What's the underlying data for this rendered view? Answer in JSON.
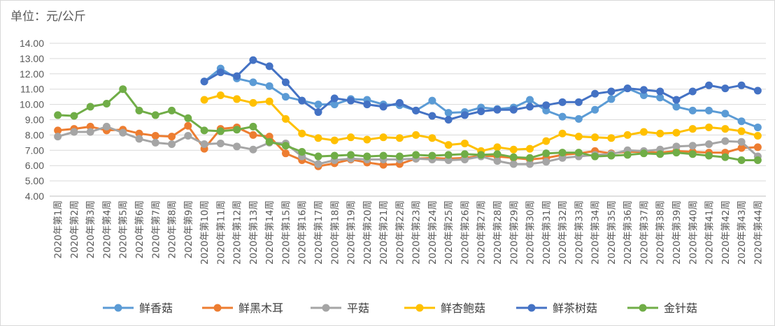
{
  "chart_data": {
    "type": "line",
    "unit_label": "单位：元/公斤",
    "ylim": [
      4.0,
      14.0
    ],
    "y_ticks": [
      "4.00",
      "5.00",
      "6.00",
      "7.00",
      "8.00",
      "9.00",
      "10.00",
      "11.00",
      "12.00",
      "13.00",
      "14.00"
    ],
    "grid": true,
    "legend_position": "bottom",
    "categories": [
      "2020年第1周",
      "2020年第2周",
      "2020年第3周",
      "2020年第4周",
      "2020年第5周",
      "2020年第6周",
      "2020年第7周",
      "2020年第8周",
      "2020年第9周",
      "2020年第10周",
      "2020年第11周",
      "2020年第12周",
      "2020年第13周",
      "2020年第14周",
      "2020年第15周",
      "2020年第16周",
      "2020年第17周",
      "2020年第18周",
      "2020年第19周",
      "2020年第20周",
      "2020年第21周",
      "2020年第22周",
      "2020年第23周",
      "2020年第24周",
      "2020年第25周",
      "2020年第26周",
      "2020年第27周",
      "2020年第28周",
      "2020年第29周",
      "2020年第30周",
      "2020年第31周",
      "2020年第32周",
      "2020年第33周",
      "2020年第34周",
      "2020年第35周",
      "2020年第36周",
      "2020年第37周",
      "2020年第38周",
      "2020年第39周",
      "2020年第40周",
      "2020年第41周",
      "2020年第42周",
      "2020年第43周",
      "2020年第44周"
    ],
    "series": [
      {
        "name": "鲜香菇",
        "color": "#5B9BD5",
        "values": [
          null,
          null,
          null,
          null,
          null,
          null,
          null,
          null,
          null,
          11.5,
          12.35,
          11.7,
          11.45,
          11.2,
          10.5,
          10.25,
          10.0,
          10.0,
          10.35,
          10.3,
          10.0,
          9.95,
          9.6,
          10.25,
          9.45,
          9.5,
          9.8,
          9.7,
          9.8,
          10.3,
          9.6,
          9.2,
          9.05,
          9.65,
          10.35,
          11.05,
          10.6,
          10.45,
          9.85,
          9.6,
          9.6,
          9.4,
          8.9,
          8.5
        ]
      },
      {
        "name": "鲜黑木耳",
        "color": "#ED7D31",
        "values": [
          8.3,
          8.4,
          8.55,
          8.3,
          8.35,
          8.1,
          7.95,
          7.9,
          8.6,
          7.1,
          8.4,
          8.5,
          8.0,
          7.9,
          6.8,
          6.35,
          5.95,
          6.15,
          6.4,
          6.2,
          6.05,
          6.1,
          6.45,
          6.5,
          6.45,
          6.5,
          6.65,
          6.6,
          6.5,
          6.4,
          6.5,
          6.7,
          6.8,
          6.95,
          6.8,
          6.9,
          6.9,
          6.85,
          6.95,
          6.9,
          6.85,
          6.85,
          7.15,
          7.2
        ]
      },
      {
        "name": "平菇",
        "color": "#A5A5A5",
        "values": [
          7.9,
          8.2,
          8.2,
          8.55,
          8.15,
          7.75,
          7.5,
          7.4,
          7.95,
          7.4,
          7.45,
          7.25,
          7.05,
          7.5,
          7.45,
          6.6,
          6.1,
          6.35,
          6.45,
          6.4,
          6.4,
          6.4,
          6.45,
          6.4,
          6.35,
          6.4,
          6.6,
          6.3,
          6.1,
          6.1,
          6.25,
          6.5,
          6.6,
          6.7,
          6.75,
          7.0,
          6.95,
          7.05,
          7.25,
          7.3,
          7.4,
          7.6,
          7.55,
          6.6
        ]
      },
      {
        "name": "鲜杏鲍菇",
        "color": "#FFC000",
        "values": [
          null,
          null,
          null,
          null,
          null,
          null,
          null,
          null,
          null,
          10.3,
          10.6,
          10.35,
          10.1,
          10.2,
          9.05,
          8.1,
          7.8,
          7.65,
          7.85,
          7.7,
          7.85,
          7.8,
          8.0,
          7.8,
          7.35,
          7.45,
          6.95,
          7.2,
          7.05,
          7.1,
          7.6,
          8.1,
          7.9,
          7.85,
          7.8,
          8.0,
          8.2,
          8.1,
          8.15,
          8.4,
          8.5,
          8.4,
          8.25,
          7.95
        ]
      },
      {
        "name": "鲜茶树菇",
        "color": "#4472C4",
        "values": [
          null,
          null,
          null,
          null,
          null,
          null,
          null,
          null,
          null,
          11.5,
          12.1,
          11.85,
          12.9,
          12.5,
          11.45,
          10.25,
          9.5,
          10.4,
          10.25,
          10.0,
          9.85,
          10.1,
          9.6,
          9.25,
          9.0,
          9.3,
          9.55,
          9.65,
          9.65,
          9.85,
          9.95,
          10.15,
          10.15,
          10.7,
          10.85,
          11.05,
          10.95,
          10.85,
          10.3,
          10.85,
          11.25,
          11.05,
          11.25,
          10.9
        ]
      },
      {
        "name": "金针菇",
        "color": "#70AD47",
        "values": [
          9.3,
          9.25,
          9.85,
          10.05,
          11.0,
          9.6,
          9.3,
          9.6,
          9.1,
          8.3,
          8.25,
          8.35,
          8.55,
          7.55,
          7.3,
          6.9,
          6.6,
          6.65,
          6.7,
          6.6,
          6.65,
          6.6,
          6.7,
          6.65,
          6.7,
          6.75,
          6.7,
          6.75,
          6.55,
          6.5,
          6.8,
          6.85,
          6.85,
          6.6,
          6.65,
          6.7,
          6.8,
          6.75,
          6.85,
          6.75,
          6.65,
          6.55,
          6.35,
          6.35
        ]
      }
    ]
  }
}
